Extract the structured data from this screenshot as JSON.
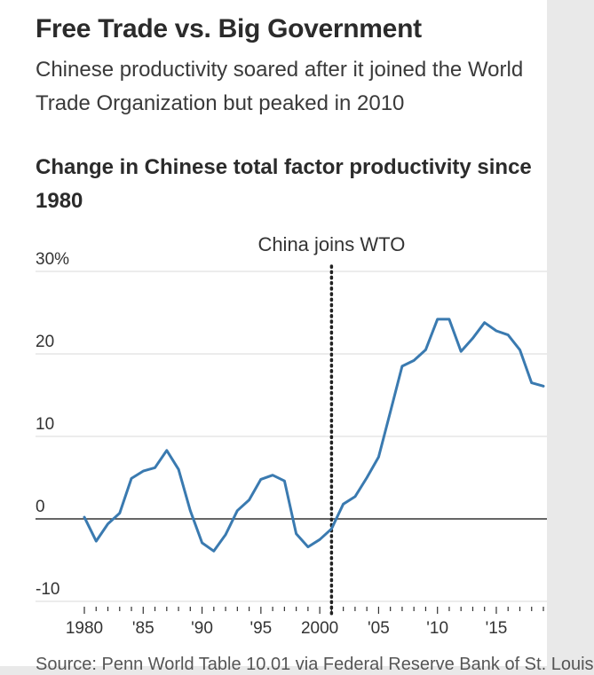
{
  "header": {
    "title": "Free Trade vs. Big Government",
    "subtitle": "Chinese productivity soared after it joined the World Trade Organization but peaked in 2010"
  },
  "chart_data": {
    "type": "line",
    "title": "Change in Chinese total factor productivity since 1980",
    "xlabel": "",
    "ylabel": "",
    "y_unit": "%",
    "xlim": [
      1980,
      2019
    ],
    "ylim": [
      -10,
      30
    ],
    "y_ticks": [
      -10,
      0,
      10,
      20,
      30
    ],
    "y_tick_labels": [
      "-10",
      "0",
      "10",
      "20",
      "30%"
    ],
    "x_ticks": [
      1980,
      1985,
      1990,
      1995,
      2000,
      2005,
      2010,
      2015
    ],
    "x_tick_labels": [
      "1980",
      "'85",
      "'90",
      "'95",
      "2000",
      "'05",
      "'10",
      "'15"
    ],
    "grid": true,
    "line_color": "#3a7ab0",
    "series": [
      {
        "x": [
          1980,
          1981,
          1982,
          1983,
          1984,
          1985,
          1986,
          1987,
          1988,
          1989,
          1990,
          1991,
          1992,
          1993,
          1994,
          1995,
          1996,
          1997,
          1998,
          1999,
          2000,
          2001,
          2002,
          2003,
          2004,
          2005,
          2006,
          2007,
          2008,
          2009,
          2010,
          2011,
          2012,
          2013,
          2014,
          2015,
          2016,
          2017,
          2018,
          2019
        ],
        "values": [
          0.2,
          -2.7,
          -0.6,
          0.7,
          4.9,
          5.8,
          6.2,
          8.3,
          6.0,
          1.0,
          -2.9,
          -3.9,
          -1.9,
          1.0,
          2.3,
          4.8,
          5.3,
          4.6,
          -1.8,
          -3.4,
          -2.5,
          -1.2,
          1.8,
          2.7,
          5.0,
          7.5,
          13.0,
          18.5,
          19.2,
          20.5,
          24.2,
          24.2,
          20.3,
          21.9,
          23.8,
          22.8,
          22.3,
          20.5,
          16.5,
          16.1
        ]
      }
    ],
    "annotation": {
      "label": "China joins WTO",
      "x": 2001
    }
  },
  "footer": {
    "source": "Source: Penn World Table 10.01 via Federal Reserve Bank of St. Louis"
  }
}
